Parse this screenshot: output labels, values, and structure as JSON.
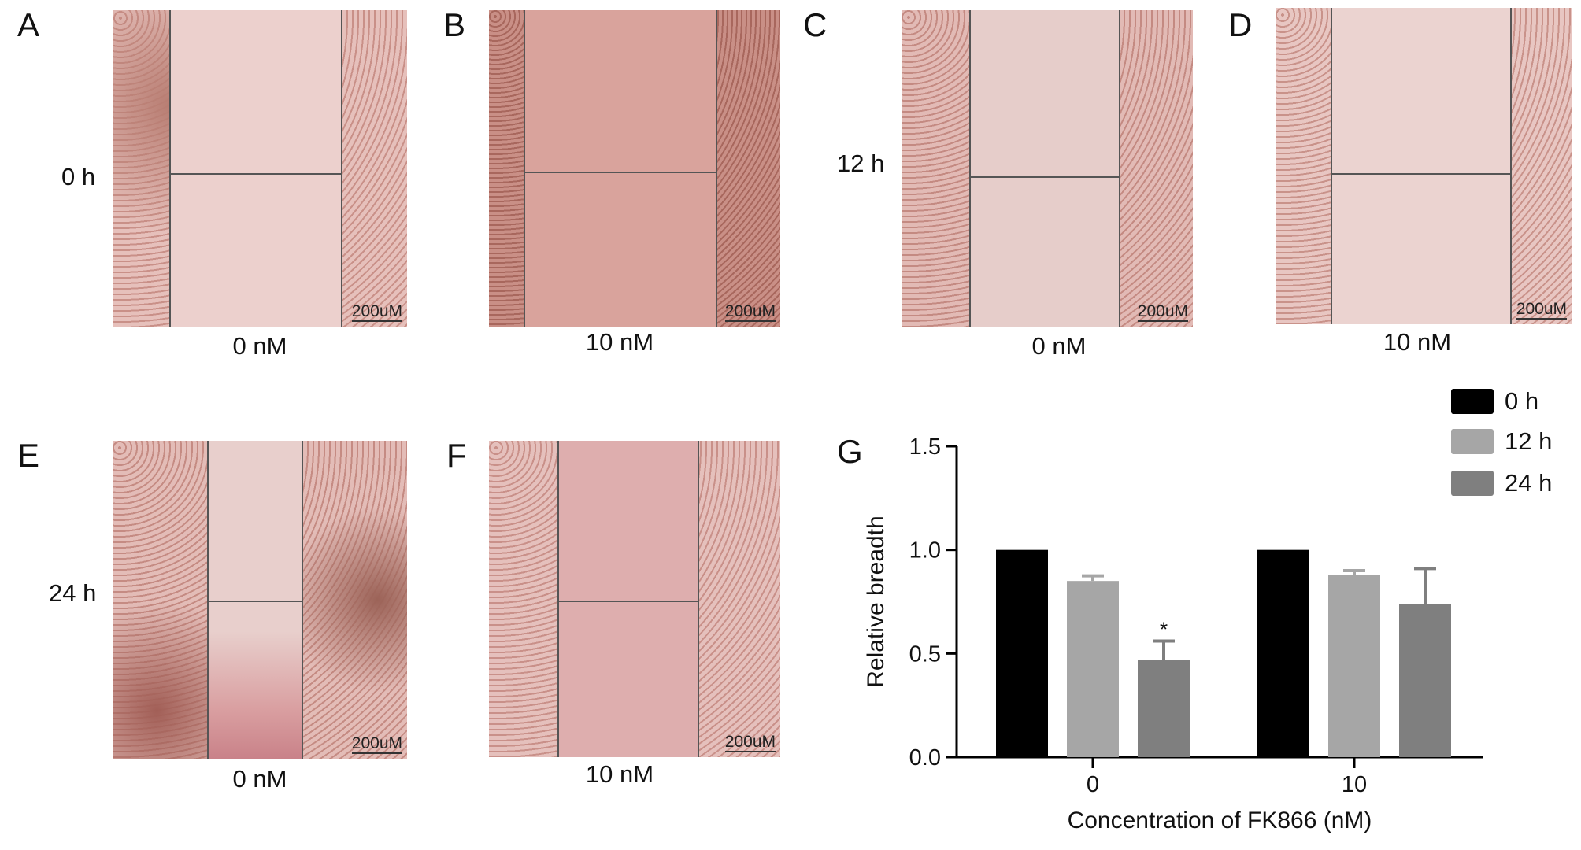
{
  "panels": [
    {
      "letter": "A",
      "row_label": "0 h",
      "condition": "0 nM",
      "scale_bar": "200uM"
    },
    {
      "letter": "B",
      "row_label": "",
      "condition": "10 nM",
      "scale_bar": "200uM"
    },
    {
      "letter": "C",
      "row_label": "12 h",
      "condition": "0 nM",
      "scale_bar": "200uM"
    },
    {
      "letter": "D",
      "row_label": "",
      "condition": "10 nM",
      "scale_bar": "200uM"
    },
    {
      "letter": "E",
      "row_label": "24 h",
      "condition": "0 nM",
      "scale_bar": "200uM"
    },
    {
      "letter": "F",
      "row_label": "",
      "condition": "10 nM",
      "scale_bar": "200uM"
    }
  ],
  "chart_letter": "G",
  "chart_data": {
    "type": "bar",
    "title": "",
    "xlabel": "Concentration of FK866 (nM)",
    "ylabel": "Relative breadth",
    "categories": [
      "0",
      "10"
    ],
    "ylim": [
      0,
      1.5
    ],
    "yticks": [
      "0.0",
      "0.5",
      "1.0",
      "1.5"
    ],
    "series": [
      {
        "name": "0 h",
        "color": "#000000",
        "values": [
          1.0,
          1.0
        ],
        "errors": [
          0,
          0
        ]
      },
      {
        "name": "12 h",
        "color": "#a6a6a6",
        "values": [
          0.85,
          0.88
        ],
        "errors": [
          0.025,
          0.02
        ]
      },
      {
        "name": "24 h",
        "color": "#7f7f7f",
        "values": [
          0.47,
          0.74
        ],
        "errors": [
          0.09,
          0.17
        ]
      }
    ],
    "annotations": [
      {
        "series": "24 h",
        "category": "0",
        "text": "*"
      }
    ],
    "legend_position": "top-right"
  }
}
